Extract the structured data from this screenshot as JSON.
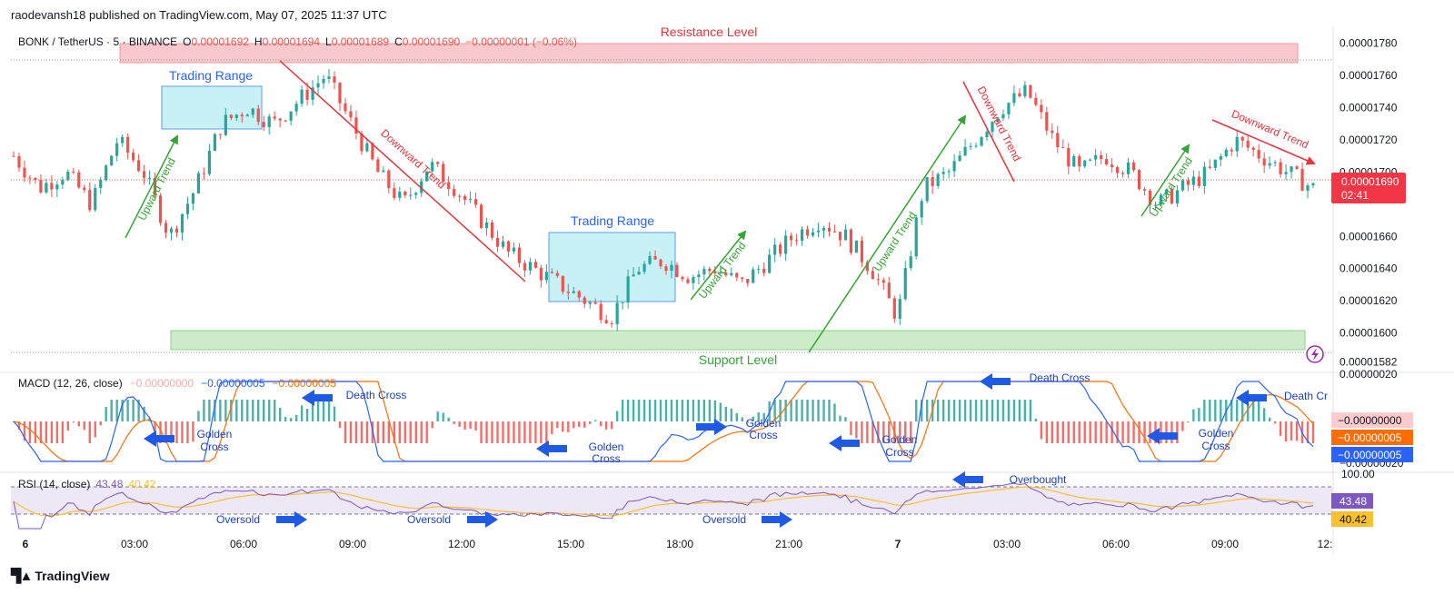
{
  "header": {
    "published": "raodevansh18 published on TradingView.com, May 07, 2025 11:37 UTC"
  },
  "legend": {
    "symbol": "BONK / TetherUS · 5 · BINANCE",
    "o_label": "O",
    "o_value": "0.00001692",
    "h_label": "H",
    "h_value": "0.00001694",
    "l_label": "L",
    "l_value": "0.00001689",
    "c_label": "C",
    "c_value": "0.00001690",
    "change": "−0.00000001 (−0.06%)"
  },
  "price_axis": {
    "ticks": [
      "0.00001780",
      "0.00001760",
      "0.00001740",
      "0.00001720",
      "0.00001700",
      "0.00001660",
      "0.00001640",
      "0.00001620",
      "0.00001600",
      "0.00001582"
    ],
    "last_price": "0.00001690",
    "countdown": "02:41"
  },
  "time_axis": {
    "ticks": [
      "6",
      "03:00",
      "06:00",
      "09:00",
      "12:00",
      "15:00",
      "18:00",
      "21:00",
      "7",
      "03:00",
      "06:00",
      "09:00",
      "12:"
    ]
  },
  "annotations": {
    "resistance": "Resistance Level",
    "support": "Support Level",
    "trading_range_1": "Trading Range",
    "trading_range_2": "Trading Range",
    "upward_trend": "Upward Trend",
    "downward_trend": "Downward Trend",
    "death_cross": "Death Cross",
    "death_cross_cut": "Death Cr",
    "golden": "Golden",
    "cross": "Cross",
    "overbought": "Overbought",
    "oversold": "Oversold"
  },
  "macd": {
    "label": "MACD (12, 26, close)",
    "hist_value": "−0.00000000",
    "macd_value": "−0.00000005",
    "signal_value": "−0.00000005",
    "axis_top": "0.00000020",
    "axis_bottom": "−0.00000020",
    "badge_hist": "−0.00000000",
    "badge_signal": "−0.00000005",
    "badge_macd": "−0.00000005"
  },
  "rsi": {
    "label": "RSI (14, close)",
    "rsi_value": "43.48",
    "ma_value": "40.42",
    "axis_top": "100.00",
    "badge_rsi": "43.48",
    "badge_ma": "40.42"
  },
  "footer": {
    "brand": "TradingView"
  },
  "colors": {
    "up": "#26a69a",
    "down": "#ef5350",
    "macd": "#2962ff",
    "signal": "#ff6d00",
    "rsi": "#7e57c2",
    "rsi_ma": "#fbc02d",
    "arrow": "#1e5ae6",
    "trend_up": "#33a532",
    "trend_down": "#e8323c"
  },
  "chart_data": {
    "type": "candlestick",
    "title": "BONK / TetherUS · 5 · BINANCE",
    "ylim": [
      1.58e-05,
      1.79e-05
    ],
    "close_approx": [
      1.71e-05,
      1.69e-05,
      1.7e-05,
      1.68e-05,
      1.72e-05,
      1.7e-05,
      1.66e-05,
      1.69e-05,
      1.73e-05,
      1.74e-05,
      1.73e-05,
      1.745e-05,
      1.76e-05,
      1.73e-05,
      1.7e-05,
      1.68e-05,
      1.705e-05,
      1.69e-05,
      1.67e-05,
      1.65e-05,
      1.64e-05,
      1.63e-05,
      1.62e-05,
      1.61e-05,
      1.64e-05,
      1.645e-05,
      1.635e-05,
      1.64e-05,
      1.63e-05,
      1.645e-05,
      1.66e-05,
      1.67e-05,
      1.66e-05,
      1.64e-05,
      1.61e-05,
      1.69e-05,
      1.7e-05,
      1.72e-05,
      1.74e-05,
      1.75e-05,
      1.72e-05,
      1.7e-05,
      1.71e-05,
      1.7e-05,
      1.68e-05,
      1.69e-05,
      1.7e-05,
      1.72e-05,
      1.71e-05,
      1.7e-05,
      1.69e-05
    ],
    "resistance": 1.77e-05,
    "support": 1.59e-05,
    "last": 1.69e-05
  }
}
